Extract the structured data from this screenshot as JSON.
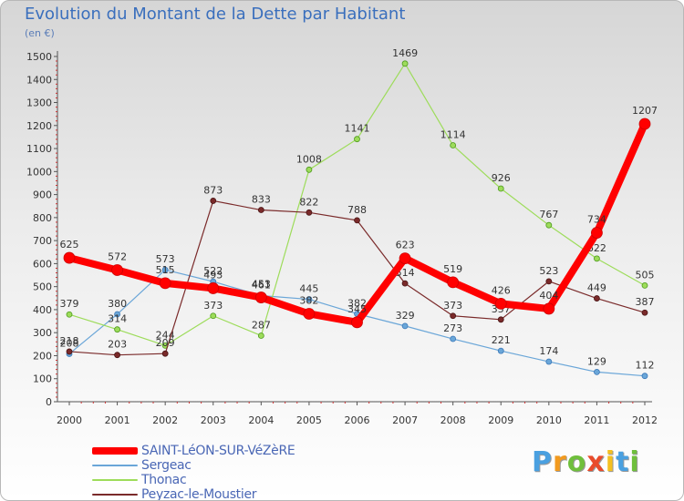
{
  "title": "Evolution du Montant de la Dette par Habitant",
  "subtitle": "(en €)",
  "logo": {
    "letters": [
      "P",
      "r",
      "o",
      "x",
      "i",
      "t",
      "i"
    ],
    "colors": [
      "#4aa0e0",
      "#f29a1e",
      "#6fbf3c",
      "#e94b2b",
      "#f5c020",
      "#4aa0e0",
      "#6fbf3c"
    ]
  },
  "chart_data": {
    "type": "line",
    "title": "Evolution du Montant de la Dette par Habitant",
    "ylabel": "(en €)",
    "xlabel": "",
    "x": [
      "2000",
      "2001",
      "2002",
      "2003",
      "2004",
      "2005",
      "2006",
      "2007",
      "2008",
      "2009",
      "2010",
      "2011",
      "2012"
    ],
    "ylim": [
      0,
      1500
    ],
    "yticks": [
      0,
      100,
      200,
      300,
      400,
      500,
      600,
      700,
      800,
      900,
      1000,
      1100,
      1200,
      1300,
      1400,
      1500
    ],
    "grid": false,
    "legend": "bottom-left",
    "series": [
      {
        "name": "SAINT-LéON-SUR-VéZèRE",
        "color": "#ff0000",
        "width": 8,
        "values": [
          625,
          572,
          515,
          493,
          453,
          382,
          345,
          623,
          519,
          426,
          404,
          734,
          1207
        ],
        "labels": [
          "625",
          "572",
          "515",
          "493",
          "453",
          "382",
          "345",
          "623",
          "519",
          "426",
          "404",
          "734",
          "1207"
        ]
      },
      {
        "name": "Sergeac",
        "color": "#6aa6d8",
        "width": 1.2,
        "values": [
          208,
          380,
          573,
          522,
          461,
          445,
          382,
          329,
          273,
          221,
          174,
          129,
          112
        ],
        "labels": [
          "208",
          "380",
          "573",
          "522",
          "461",
          "445",
          "382",
          "329",
          "273",
          "221",
          "174",
          "129",
          "112"
        ]
      },
      {
        "name": "Thonac",
        "color": "#9ddc5a",
        "width": 1.2,
        "values": [
          379,
          314,
          244,
          373,
          287,
          1008,
          1141,
          1469,
          1114,
          926,
          767,
          622,
          505
        ],
        "labels": [
          "379",
          "314",
          "244",
          "373",
          "287",
          "1008",
          "1141",
          "1469",
          "1114",
          "926",
          "767",
          "622",
          "505"
        ]
      },
      {
        "name": "Peyzac-le-Moustier",
        "color": "#7a2a2a",
        "width": 1.2,
        "values": [
          218,
          203,
          209,
          873,
          833,
          822,
          788,
          514,
          373,
          357,
          523,
          449,
          387
        ],
        "labels": [
          "218",
          "203",
          "209",
          "873",
          "833",
          "822",
          "788",
          "514",
          "373",
          "357",
          "523",
          "449",
          "387"
        ]
      }
    ]
  }
}
